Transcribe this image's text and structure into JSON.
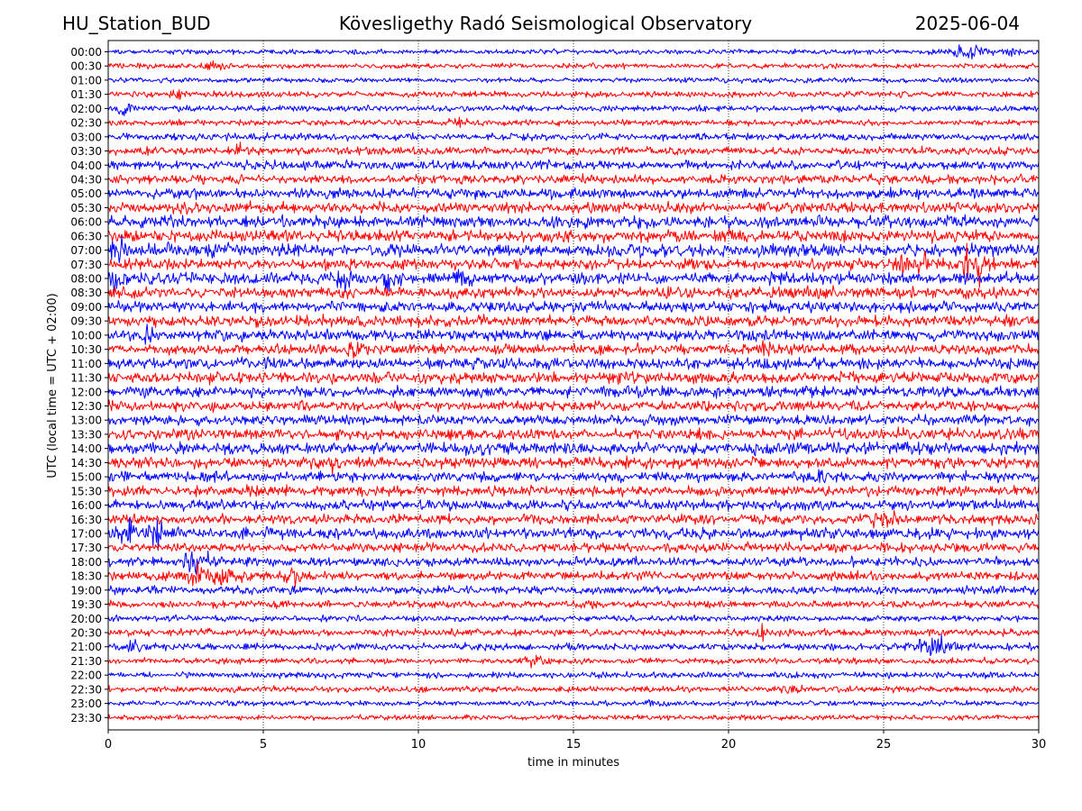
{
  "header": {
    "station": "HU_Station_BUD",
    "observatory": "Kövesligethy Radó Seismological Observatory",
    "date": "2025-06-04"
  },
  "chart_data": {
    "type": "line",
    "title": "Kövesligethy Radó Seismological Observatory",
    "xlabel": "time in minutes",
    "ylabel": "UTC (local time = UTC + 02:00)",
    "xlim": [
      0,
      30
    ],
    "x_ticks": [
      0,
      5,
      10,
      15,
      20,
      25,
      30
    ],
    "grid": "vertical dotted lines at x ticks",
    "row_labels": [
      "00:00",
      "00:30",
      "01:00",
      "01:30",
      "02:00",
      "02:30",
      "03:00",
      "03:30",
      "04:00",
      "04:30",
      "05:00",
      "05:30",
      "06:00",
      "06:30",
      "07:00",
      "07:30",
      "08:00",
      "08:30",
      "09:00",
      "09:30",
      "10:00",
      "10:30",
      "11:00",
      "11:30",
      "12:00",
      "12:30",
      "13:00",
      "13:30",
      "14:00",
      "14:30",
      "15:00",
      "15:30",
      "16:00",
      "16:30",
      "17:00",
      "17:30",
      "18:00",
      "18:30",
      "19:00",
      "19:30",
      "20:00",
      "20:30",
      "21:00",
      "21:30",
      "22:00",
      "22:30",
      "23:00",
      "23:30"
    ],
    "colors": {
      "even_rows": "#0000ff",
      "odd_rows": "#ff0000",
      "grid": "#000000"
    },
    "noise_level": [
      0.25,
      0.25,
      0.25,
      0.3,
      0.3,
      0.3,
      0.35,
      0.4,
      0.45,
      0.45,
      0.5,
      0.55,
      0.6,
      0.6,
      0.65,
      0.55,
      0.6,
      0.55,
      0.55,
      0.55,
      0.55,
      0.5,
      0.55,
      0.55,
      0.55,
      0.5,
      0.5,
      0.55,
      0.6,
      0.55,
      0.5,
      0.5,
      0.5,
      0.5,
      0.55,
      0.45,
      0.45,
      0.45,
      0.4,
      0.35,
      0.3,
      0.35,
      0.35,
      0.3,
      0.3,
      0.3,
      0.25,
      0.25
    ],
    "events": [
      {
        "row": 0,
        "minute": 27.8,
        "amplitude": 0.6,
        "duration_min": 1.2
      },
      {
        "row": 0,
        "minute": 29.4,
        "amplitude": 0.5,
        "duration_min": 0.8
      },
      {
        "row": 1,
        "minute": 3.5,
        "amplitude": 0.5,
        "duration_min": 0.8
      },
      {
        "row": 3,
        "minute": 2.2,
        "amplitude": 0.4,
        "duration_min": 0.6
      },
      {
        "row": 4,
        "minute": 0.5,
        "amplitude": 0.5,
        "duration_min": 0.6
      },
      {
        "row": 5,
        "minute": 11.3,
        "amplitude": 0.4,
        "duration_min": 0.6
      },
      {
        "row": 7,
        "minute": 4.2,
        "amplitude": 0.5,
        "duration_min": 0.5
      },
      {
        "row": 14,
        "minute": 0.3,
        "amplitude": 0.9,
        "duration_min": 0.5
      },
      {
        "row": 15,
        "minute": 25.6,
        "amplitude": 1.7,
        "duration_min": 0.3
      },
      {
        "row": 15,
        "minute": 26.2,
        "amplitude": 1.2,
        "duration_min": 0.3
      },
      {
        "row": 15,
        "minute": 27.6,
        "amplitude": 1.6,
        "duration_min": 0.3
      },
      {
        "row": 15,
        "minute": 28.1,
        "amplitude": 1.4,
        "duration_min": 0.3
      },
      {
        "row": 16,
        "minute": 0.3,
        "amplitude": 1.3,
        "duration_min": 0.5
      },
      {
        "row": 16,
        "minute": 7.4,
        "amplitude": 1.0,
        "duration_min": 0.6
      },
      {
        "row": 16,
        "minute": 9.1,
        "amplitude": 1.3,
        "duration_min": 0.6
      },
      {
        "row": 16,
        "minute": 11.4,
        "amplitude": 0.9,
        "duration_min": 0.4
      },
      {
        "row": 19,
        "minute": 8.0,
        "amplitude": 0.6,
        "duration_min": 0.4
      },
      {
        "row": 20,
        "minute": 1.2,
        "amplitude": 0.6,
        "duration_min": 0.4
      },
      {
        "row": 21,
        "minute": 8.0,
        "amplitude": 0.7,
        "duration_min": 0.4
      },
      {
        "row": 21,
        "minute": 21.2,
        "amplitude": 0.6,
        "duration_min": 0.4
      },
      {
        "row": 29,
        "minute": 7.2,
        "amplitude": 0.6,
        "duration_min": 0.8
      },
      {
        "row": 30,
        "minute": 23.0,
        "amplitude": 0.5,
        "duration_min": 0.8
      },
      {
        "row": 33,
        "minute": 25.0,
        "amplitude": 0.6,
        "duration_min": 0.8
      },
      {
        "row": 34,
        "minute": 0.8,
        "amplitude": 0.9,
        "duration_min": 1.2
      },
      {
        "row": 34,
        "minute": 1.6,
        "amplitude": 1.2,
        "duration_min": 0.5
      },
      {
        "row": 36,
        "minute": 3.0,
        "amplitude": 0.8,
        "duration_min": 1.0
      },
      {
        "row": 37,
        "minute": 2.8,
        "amplitude": 0.8,
        "duration_min": 0.8
      },
      {
        "row": 37,
        "minute": 3.8,
        "amplitude": 0.9,
        "duration_min": 0.8
      },
      {
        "row": 37,
        "minute": 6.0,
        "amplitude": 0.7,
        "duration_min": 0.6
      },
      {
        "row": 41,
        "minute": 21.1,
        "amplitude": 0.6,
        "duration_min": 0.4
      },
      {
        "row": 42,
        "minute": 0.8,
        "amplitude": 0.5,
        "duration_min": 0.4
      },
      {
        "row": 42,
        "minute": 26.6,
        "amplitude": 0.9,
        "duration_min": 1.2
      },
      {
        "row": 43,
        "minute": 13.8,
        "amplitude": 0.5,
        "duration_min": 0.6
      },
      {
        "row": 45,
        "minute": 22.0,
        "amplitude": 0.5,
        "duration_min": 0.6
      },
      {
        "row": 46,
        "minute": 17.5,
        "amplitude": 0.5,
        "duration_min": 0.2
      }
    ]
  }
}
